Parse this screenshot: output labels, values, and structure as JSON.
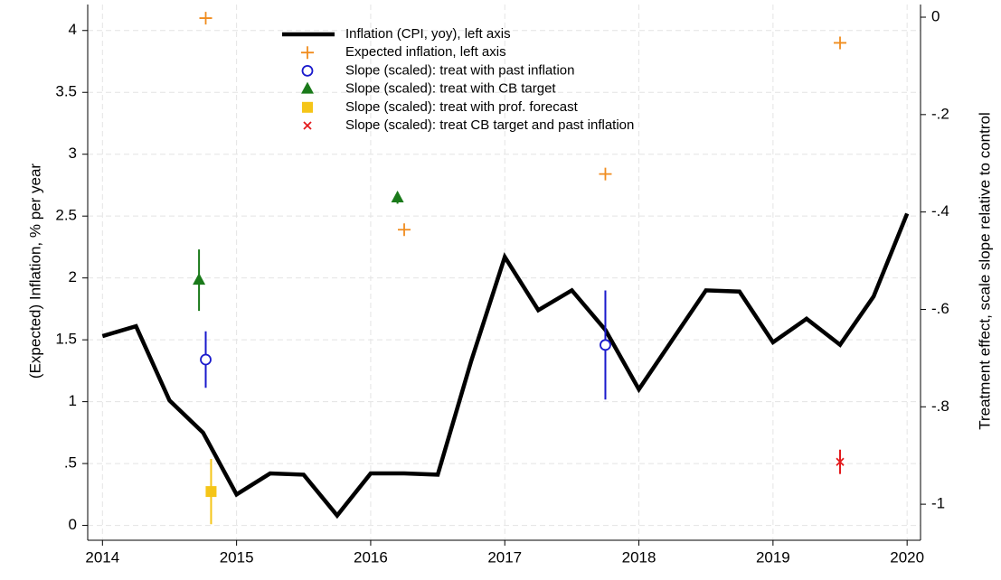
{
  "chart_data": {
    "type": "line",
    "ylabel": "(Expected) Inflation, % per year",
    "y2label": "Treatment effect, scale slope relative to control",
    "xlim": [
      2013.89,
      2020.1
    ],
    "xticks": [
      2014,
      2015,
      2016,
      2017,
      2018,
      2019,
      2020
    ],
    "ylim": [
      -0.12,
      4.21
    ],
    "yticks": [
      0,
      {
        "value": 0.5,
        "label": ".5"
      },
      1,
      1.5,
      2,
      2.5,
      3,
      3.5,
      4
    ],
    "y2lim": [
      -1.074,
      0.026
    ],
    "y2ticks": [
      0,
      {
        "value": -0.2,
        "label": "-.2"
      },
      {
        "value": -0.4,
        "label": "-.4"
      },
      {
        "value": -0.6,
        "label": "-.6"
      },
      {
        "value": -0.8,
        "label": "-.8"
      },
      -1
    ],
    "grid": true,
    "legend": "top",
    "series": [
      {
        "name": "Inflation (CPI, yoy), left axis",
        "type": "line",
        "color": "#000000",
        "x": [
          2014,
          2014.25,
          2014.5,
          2014.75,
          2015,
          2015.25,
          2015.5,
          2015.75,
          2016,
          2016.25,
          2016.5,
          2016.75,
          2017,
          2017.25,
          2017.5,
          2017.75,
          2018,
          2018.25,
          2018.5,
          2018.75,
          2019,
          2019.25,
          2019.5,
          2019.75,
          2020
        ],
        "values": [
          1.53,
          1.61,
          1.01,
          0.75,
          0.25,
          0.42,
          0.41,
          0.08,
          0.42,
          0.42,
          0.41,
          1.33,
          2.17,
          1.74,
          1.9,
          1.58,
          1.1,
          1.5,
          1.9,
          1.89,
          1.48,
          1.67,
          1.46,
          1.85,
          2.52
        ]
      },
      {
        "name": "Expected inflation, left axis",
        "type": "scatter",
        "marker": "plus",
        "color": "#f08c1e",
        "x": [
          2014.77,
          2016.25,
          2017.75,
          2019.5
        ],
        "values": [
          4.1,
          2.39,
          2.84,
          3.9
        ]
      },
      {
        "name": "Slope (scaled): treat with past inflation",
        "type": "scatter",
        "marker": "circle",
        "color": "#1a1acc",
        "axis": "y2",
        "x": [
          2014.77,
          2017.75
        ],
        "values": [
          -0.703,
          -0.673
        ],
        "errors": [
          0.058,
          0.112
        ]
      },
      {
        "name": "Slope (scaled): treat with CB target",
        "type": "scatter",
        "marker": "triangle",
        "color": "#1a7a1a",
        "axis": "y2",
        "x": [
          2014.72,
          2016.2
        ],
        "values": [
          -0.54,
          -0.371
        ],
        "errors": [
          0.063,
          0.012
        ]
      },
      {
        "name": "Slope (scaled): treat with prof. forecast",
        "type": "scatter",
        "marker": "square",
        "color": "#f5c518",
        "axis": "y2",
        "x": [
          2014.81
        ],
        "values": [
          -0.974
        ],
        "errors": [
          0.067
        ]
      },
      {
        "name": "Slope (scaled): treat CB target and past inflation",
        "type": "scatter",
        "marker": "x",
        "color": "#e31a1c",
        "axis": "y2",
        "x": [
          2019.5
        ],
        "values": [
          -0.913
        ],
        "errors": [
          0.025
        ]
      }
    ]
  }
}
